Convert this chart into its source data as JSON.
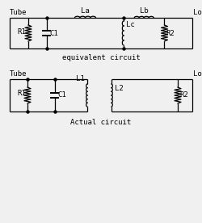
{
  "bg_color": "#f0f0f0",
  "line_color": "#000000",
  "text_color": "#000000",
  "font_family": "monospace",
  "font_size": 6.5,
  "title1": "equivalent circuit",
  "title2": "Actual circuit",
  "label_tube": "Tube",
  "label_load": "Load",
  "label_La": "La",
  "label_Lb": "Lb",
  "label_Lc": "Lc",
  "label_C1_eq": "C1",
  "label_R1_eq": "R1",
  "label_R2_eq": "R2",
  "label_L1": "L1",
  "label_L2": "L2",
  "label_C1_ac": "C1",
  "label_R1_ac": "R1",
  "label_R2_ac": "R2"
}
